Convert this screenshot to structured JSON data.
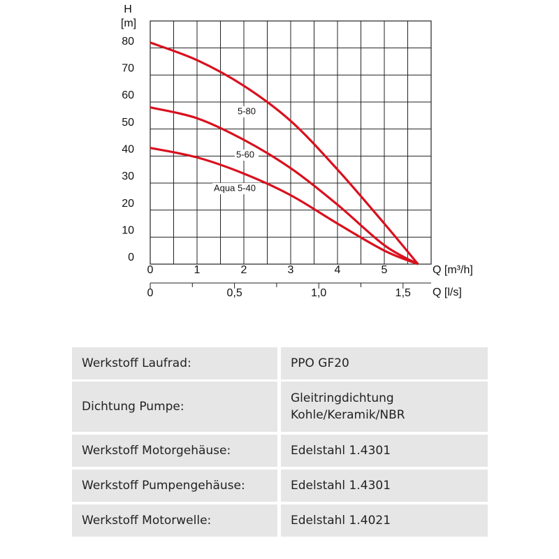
{
  "chart_data": {
    "type": "line",
    "y_label": "H",
    "y_unit": "[m]",
    "x_label": "Q [m³/h]",
    "x2_label": "Q [l/s]",
    "x": [
      0,
      1,
      2,
      3,
      4,
      5,
      5.72
    ],
    "series": [
      {
        "name": "5-80",
        "color": "#d9101e",
        "values": [
          82,
          75.5,
          66,
          53,
          35,
          15,
          0
        ]
      },
      {
        "name": "5-60",
        "color": "#d9101e",
        "values": [
          58,
          54,
          46,
          35.5,
          22,
          7,
          0
        ]
      },
      {
        "name": "Aqua 5-40",
        "color": "#d9101e",
        "values": [
          43,
          39.5,
          33.5,
          25.5,
          15,
          5,
          0
        ]
      }
    ],
    "xlim": [
      0,
      6
    ],
    "ylim": [
      0,
      90
    ],
    "xticks": [
      0,
      1,
      2,
      3,
      4,
      5
    ],
    "xgrid": [
      0,
      0.5,
      1,
      1.5,
      2,
      2.5,
      3,
      3.5,
      4,
      4.5,
      5,
      5.5,
      6
    ],
    "yticks": [
      0,
      10,
      20,
      30,
      40,
      50,
      60,
      70,
      80
    ],
    "x2_per_x": 3.6,
    "x2ticks": [
      0,
      {
        "value": 0.5,
        "label": "0,5"
      },
      {
        "value": 1.0,
        "label": "1,0"
      },
      {
        "value": 1.5,
        "label": "1,5"
      }
    ],
    "x2_minor_ticks": [
      0.25,
      0.75,
      1.25
    ],
    "grid": true
  },
  "table": {
    "rows": [
      [
        "Werkstoff Laufrad:",
        [
          "PPO GF20"
        ]
      ],
      [
        "Dichtung Pumpe:",
        [
          "Gleitringdichtung",
          "Kohle/Keramik/NBR"
        ]
      ],
      [
        "Werkstoff Motorgehäuse:",
        [
          "Edelstahl 1.4301"
        ]
      ],
      [
        "Werkstoff Pumpengehäuse:",
        [
          "Edelstahl 1.4301"
        ]
      ],
      [
        "Werkstoff Motorwelle:",
        [
          "Edelstahl 1.4021"
        ]
      ]
    ]
  }
}
